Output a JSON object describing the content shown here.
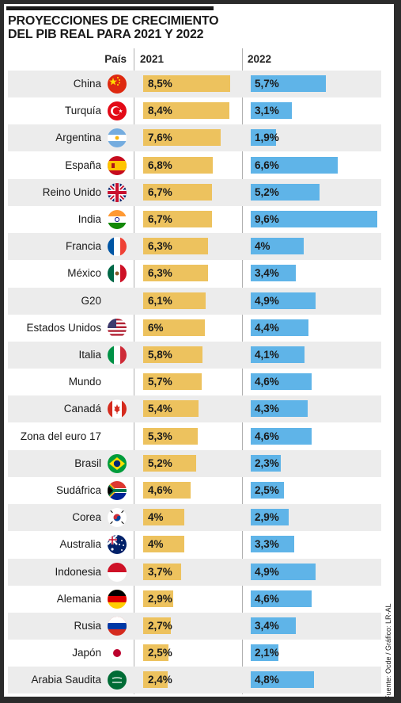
{
  "chart_data": {
    "type": "bar",
    "title": "PROYECCIONES DE CRECIMIENTO DEL PIB REAL PARA 2021 Y 2022",
    "column_header": "País",
    "series": [
      {
        "name": "2021",
        "color": "#edc25e",
        "values": [
          8.5,
          8.4,
          7.6,
          6.8,
          6.7,
          6.7,
          6.3,
          6.3,
          6.1,
          6.0,
          5.8,
          5.7,
          5.4,
          5.3,
          5.2,
          4.6,
          4.0,
          4.0,
          3.7,
          2.9,
          2.7,
          2.5,
          2.4
        ],
        "labels": [
          "8,5%",
          "8,4%",
          "7,6%",
          "6,8%",
          "6,7%",
          "6,7%",
          "6,3%",
          "6,3%",
          "6,1%",
          "6%",
          "5,8%",
          "5,7%",
          "5,4%",
          "5,3%",
          "5,2%",
          "4,6%",
          "4%",
          "4%",
          "3,7%",
          "2,9%",
          "2,7%",
          "2,5%",
          "2,4%"
        ]
      },
      {
        "name": "2022",
        "color": "#5fb4e8",
        "values": [
          5.7,
          3.1,
          1.9,
          6.6,
          5.2,
          9.6,
          4.0,
          3.4,
          4.9,
          4.4,
          4.1,
          4.6,
          4.3,
          4.6,
          2.3,
          2.5,
          2.9,
          3.3,
          4.9,
          4.6,
          3.4,
          2.1,
          4.8
        ],
        "labels": [
          "5,7%",
          "3,1%",
          "1,9%",
          "6,6%",
          "5,2%",
          "9,6%",
          "4%",
          "3,4%",
          "4,9%",
          "4,4%",
          "4,1%",
          "4,6%",
          "4,3%",
          "4,6%",
          "2,3%",
          "2,5%",
          "2,9%",
          "3,3%",
          "4,9%",
          "4,6%",
          "3,4%",
          "2,1%",
          "4,8%"
        ]
      }
    ],
    "categories": [
      "China",
      "Turquía",
      "Argentina",
      "España",
      "Reino Unido",
      "India",
      "Francia",
      "México",
      "G20",
      "Estados Unidos",
      "Italia",
      "Mundo",
      "Canadá",
      "Zona del euro 17",
      "Brasil",
      "Sudáfrica",
      "Corea",
      "Australia",
      "Indonesia",
      "Alemania",
      "Rusia",
      "Japón",
      "Arabia Saudita"
    ],
    "flags": [
      "china-flag-icon",
      "turkey-flag-icon",
      "argentina-flag-icon",
      "spain-flag-icon",
      "uk-flag-icon",
      "india-flag-icon",
      "france-flag-icon",
      "mexico-flag-icon",
      "",
      "usa-flag-icon",
      "italy-flag-icon",
      "",
      "canada-flag-icon",
      "",
      "brazil-flag-icon",
      "south-africa-flag-icon",
      "korea-flag-icon",
      "australia-flag-icon",
      "indonesia-flag-icon",
      "germany-flag-icon",
      "russia-flag-icon",
      "japan-flag-icon",
      "saudi-arabia-flag-icon"
    ],
    "source": "Fuente: Ocde / Gráfico: LR-AL"
  }
}
